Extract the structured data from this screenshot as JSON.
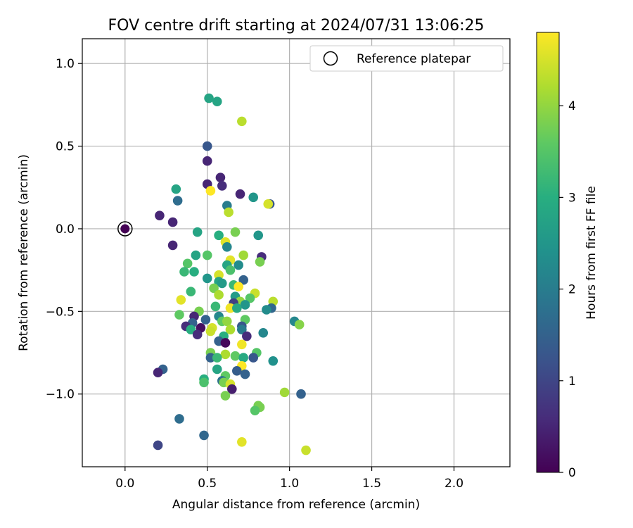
{
  "chart_data": {
    "type": "scatter",
    "title": "FOV centre drift starting at 2024/07/31 13:06:25",
    "xlabel": "Angular distance from reference (arcmin)",
    "ylabel": "Rotation from reference (arcmin)",
    "colorbar_label": "Hours from first FF file",
    "xlim": [
      -0.26,
      2.34
    ],
    "ylim": [
      -1.44,
      1.15
    ],
    "xticks": [
      0.0,
      0.5,
      1.0,
      1.5,
      2.0
    ],
    "xtick_labels": [
      "0.0",
      "0.5",
      "1.0",
      "1.5",
      "2.0"
    ],
    "yticks": [
      -1.0,
      -0.5,
      0.0,
      0.5,
      1.0
    ],
    "ytick_labels": [
      "−1.0",
      "−0.5",
      "0.0",
      "0.5",
      "1.0"
    ],
    "colorbar_ticks": [
      0,
      1,
      2,
      3,
      4
    ],
    "colorbar_tick_labels": [
      "0",
      "1",
      "2",
      "3",
      "4"
    ],
    "colorbar_range": [
      0,
      4.8
    ],
    "colormap": "viridis",
    "grid": true,
    "legend": {
      "label": "Reference platepar",
      "placement": "top-right"
    },
    "reference_point": {
      "x": 0.0,
      "y": 0.0
    },
    "points": [
      {
        "x": 0.51,
        "y": 0.79,
        "h": 2.8
      },
      {
        "x": 0.56,
        "y": 0.77,
        "h": 2.8
      },
      {
        "x": 0.71,
        "y": 0.65,
        "h": 4.3
      },
      {
        "x": 0.5,
        "y": 0.5,
        "h": 1.3
      },
      {
        "x": 0.5,
        "y": 0.41,
        "h": 0.5
      },
      {
        "x": 0.58,
        "y": 0.31,
        "h": 0.5
      },
      {
        "x": 0.5,
        "y": 0.27,
        "h": 0.5
      },
      {
        "x": 0.59,
        "y": 0.26,
        "h": 0.6
      },
      {
        "x": 0.52,
        "y": 0.23,
        "h": 4.8
      },
      {
        "x": 0.31,
        "y": 0.24,
        "h": 2.8
      },
      {
        "x": 0.7,
        "y": 0.21,
        "h": 0.5
      },
      {
        "x": 0.78,
        "y": 0.19,
        "h": 2.5
      },
      {
        "x": 0.32,
        "y": 0.17,
        "h": 1.7
      },
      {
        "x": 0.62,
        "y": 0.14,
        "h": 2.0
      },
      {
        "x": 0.88,
        "y": 0.15,
        "h": 1.3
      },
      {
        "x": 0.87,
        "y": 0.15,
        "h": 4.5
      },
      {
        "x": 0.63,
        "y": 0.1,
        "h": 4.3
      },
      {
        "x": 0.21,
        "y": 0.08,
        "h": 0.5
      },
      {
        "x": 0.29,
        "y": 0.04,
        "h": 0.5
      },
      {
        "x": 0.44,
        "y": -0.02,
        "h": 2.8
      },
      {
        "x": 0.67,
        "y": -0.02,
        "h": 3.8
      },
      {
        "x": 0.57,
        "y": -0.04,
        "h": 3.0
      },
      {
        "x": 0.81,
        "y": -0.04,
        "h": 2.5
      },
      {
        "x": 0.61,
        "y": -0.08,
        "h": 4.6
      },
      {
        "x": 0.62,
        "y": -0.11,
        "h": 2.2
      },
      {
        "x": 0.29,
        "y": -0.1,
        "h": 0.5
      },
      {
        "x": 0.43,
        "y": -0.16,
        "h": 2.8
      },
      {
        "x": 0.5,
        "y": -0.16,
        "h": 3.5
      },
      {
        "x": 0.72,
        "y": -0.16,
        "h": 4.1
      },
      {
        "x": 0.83,
        "y": -0.17,
        "h": 0.6
      },
      {
        "x": 0.64,
        "y": -0.19,
        "h": 4.6
      },
      {
        "x": 0.82,
        "y": -0.2,
        "h": 3.8
      },
      {
        "x": 0.38,
        "y": -0.21,
        "h": 3.5
      },
      {
        "x": 0.62,
        "y": -0.22,
        "h": 2.8
      },
      {
        "x": 0.69,
        "y": -0.22,
        "h": 2.3
      },
      {
        "x": 0.36,
        "y": -0.26,
        "h": 3.2
      },
      {
        "x": 0.42,
        "y": -0.26,
        "h": 3.0
      },
      {
        "x": 0.64,
        "y": -0.25,
        "h": 3.4
      },
      {
        "x": 0.57,
        "y": -0.28,
        "h": 4.5
      },
      {
        "x": 0.5,
        "y": -0.3,
        "h": 2.5
      },
      {
        "x": 0.57,
        "y": -0.32,
        "h": 2.8
      },
      {
        "x": 0.59,
        "y": -0.33,
        "h": 2.6
      },
      {
        "x": 0.72,
        "y": -0.31,
        "h": 1.5
      },
      {
        "x": 0.66,
        "y": -0.34,
        "h": 3.2
      },
      {
        "x": 0.69,
        "y": -0.35,
        "h": 4.8
      },
      {
        "x": 0.54,
        "y": -0.36,
        "h": 3.8
      },
      {
        "x": 0.4,
        "y": -0.38,
        "h": 3.2
      },
      {
        "x": 0.57,
        "y": -0.4,
        "h": 4.2
      },
      {
        "x": 0.79,
        "y": -0.39,
        "h": 4.4
      },
      {
        "x": 0.67,
        "y": -0.41,
        "h": 2.6
      },
      {
        "x": 0.76,
        "y": -0.42,
        "h": 3.5
      },
      {
        "x": 0.34,
        "y": -0.43,
        "h": 4.6
      },
      {
        "x": 0.7,
        "y": -0.44,
        "h": 4.0
      },
      {
        "x": 0.9,
        "y": -0.44,
        "h": 4.3
      },
      {
        "x": 0.66,
        "y": -0.45,
        "h": 0.9
      },
      {
        "x": 0.73,
        "y": -0.46,
        "h": 2.5
      },
      {
        "x": 0.55,
        "y": -0.47,
        "h": 3.2
      },
      {
        "x": 0.64,
        "y": -0.48,
        "h": 4.7
      },
      {
        "x": 0.68,
        "y": -0.48,
        "h": 2.9
      },
      {
        "x": 0.89,
        "y": -0.48,
        "h": 1.6
      },
      {
        "x": 0.86,
        "y": -0.49,
        "h": 2.3
      },
      {
        "x": 0.45,
        "y": -0.5,
        "h": 3.8
      },
      {
        "x": 0.33,
        "y": -0.52,
        "h": 3.6
      },
      {
        "x": 0.57,
        "y": -0.53,
        "h": 2.2
      },
      {
        "x": 0.42,
        "y": -0.53,
        "h": 0.5
      },
      {
        "x": 0.49,
        "y": -0.55,
        "h": 1.5
      },
      {
        "x": 0.73,
        "y": -0.55,
        "h": 3.6
      },
      {
        "x": 0.59,
        "y": -0.56,
        "h": 3.6
      },
      {
        "x": 0.62,
        "y": -0.56,
        "h": 4.0
      },
      {
        "x": 1.03,
        "y": -0.56,
        "h": 2.2
      },
      {
        "x": 0.41,
        "y": -0.57,
        "h": 1.5
      },
      {
        "x": 0.71,
        "y": -0.59,
        "h": 1.3
      },
      {
        "x": 0.37,
        "y": -0.59,
        "h": 0.6
      },
      {
        "x": 0.53,
        "y": -0.6,
        "h": 4.5
      },
      {
        "x": 0.46,
        "y": -0.6,
        "h": 0.2
      },
      {
        "x": 0.4,
        "y": -0.61,
        "h": 3.0
      },
      {
        "x": 0.71,
        "y": -0.61,
        "h": 2.0
      },
      {
        "x": 0.64,
        "y": -0.61,
        "h": 4.2
      },
      {
        "x": 1.06,
        "y": -0.58,
        "h": 3.9
      },
      {
        "x": 0.52,
        "y": -0.62,
        "h": 4.4
      },
      {
        "x": 0.84,
        "y": -0.63,
        "h": 2.2
      },
      {
        "x": 0.44,
        "y": -0.64,
        "h": 0.6
      },
      {
        "x": 0.6,
        "y": -0.65,
        "h": 3.0
      },
      {
        "x": 0.74,
        "y": -0.65,
        "h": 0.6
      },
      {
        "x": 0.57,
        "y": -0.68,
        "h": 1.5
      },
      {
        "x": 0.61,
        "y": -0.69,
        "h": 0.1
      },
      {
        "x": 0.71,
        "y": -0.7,
        "h": 4.7
      },
      {
        "x": 0.52,
        "y": -0.75,
        "h": 3.8
      },
      {
        "x": 0.8,
        "y": -0.75,
        "h": 3.5
      },
      {
        "x": 0.61,
        "y": -0.76,
        "h": 4.2
      },
      {
        "x": 0.67,
        "y": -0.77,
        "h": 3.6
      },
      {
        "x": 0.52,
        "y": -0.78,
        "h": 1.5
      },
      {
        "x": 0.56,
        "y": -0.78,
        "h": 3.2
      },
      {
        "x": 0.72,
        "y": -0.78,
        "h": 2.9
      },
      {
        "x": 0.78,
        "y": -0.78,
        "h": 1.3
      },
      {
        "x": 0.9,
        "y": -0.8,
        "h": 2.4
      },
      {
        "x": 0.71,
        "y": -0.83,
        "h": 4.8
      },
      {
        "x": 0.23,
        "y": -0.85,
        "h": 1.5
      },
      {
        "x": 0.56,
        "y": -0.85,
        "h": 2.8
      },
      {
        "x": 0.68,
        "y": -0.86,
        "h": 1.4
      },
      {
        "x": 0.2,
        "y": -0.87,
        "h": 0.5
      },
      {
        "x": 0.73,
        "y": -0.88,
        "h": 1.5
      },
      {
        "x": 0.48,
        "y": -0.91,
        "h": 3.0
      },
      {
        "x": 0.61,
        "y": -0.89,
        "h": 3.6
      },
      {
        "x": 0.59,
        "y": -0.92,
        "h": 1.8
      },
      {
        "x": 0.48,
        "y": -0.93,
        "h": 3.4
      },
      {
        "x": 0.6,
        "y": -0.93,
        "h": 3.8
      },
      {
        "x": 0.64,
        "y": -0.94,
        "h": 4.5
      },
      {
        "x": 0.65,
        "y": -0.97,
        "h": 0.4
      },
      {
        "x": 0.97,
        "y": -0.99,
        "h": 4.1
      },
      {
        "x": 1.07,
        "y": -1.0,
        "h": 1.5
      },
      {
        "x": 0.61,
        "y": -1.01,
        "h": 3.8
      },
      {
        "x": 0.81,
        "y": -1.07,
        "h": 3.8
      },
      {
        "x": 0.82,
        "y": -1.08,
        "h": 3.8
      },
      {
        "x": 0.79,
        "y": -1.1,
        "h": 3.5
      },
      {
        "x": 0.33,
        "y": -1.15,
        "h": 1.7
      },
      {
        "x": 0.48,
        "y": -1.25,
        "h": 1.6
      },
      {
        "x": 0.71,
        "y": -1.29,
        "h": 4.6
      },
      {
        "x": 0.2,
        "y": -1.31,
        "h": 1.0
      },
      {
        "x": 1.1,
        "y": -1.34,
        "h": 4.4
      }
    ]
  }
}
